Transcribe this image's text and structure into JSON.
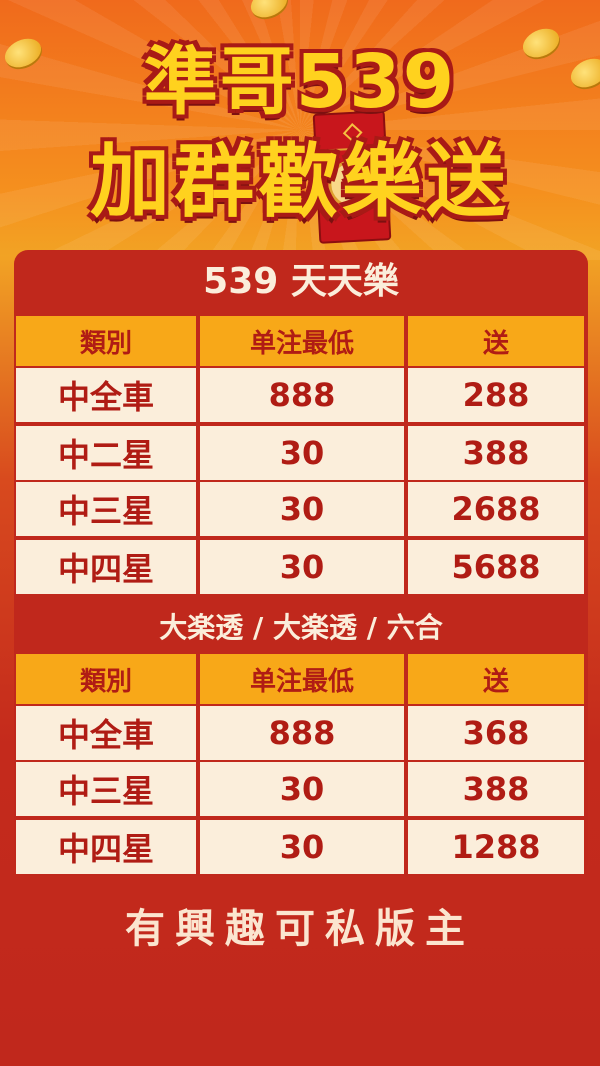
{
  "header": {
    "line1": "準哥539",
    "line2": "加群歡樂送"
  },
  "colors": {
    "background": "#c0281c",
    "title_yellow": "#ffd21e",
    "header_cell": "#f8a818",
    "body_cell": "#fbeedb",
    "text_red": "#b01c14"
  },
  "sections": [
    {
      "title": "539 天天樂",
      "columns": [
        "類別",
        "单注最低",
        "送"
      ],
      "rows": [
        [
          "中全車",
          "888",
          "288"
        ],
        [
          "中二星",
          "30",
          "388"
        ],
        [
          "中三星",
          "30",
          "2688"
        ],
        [
          "中四星",
          "30",
          "5688"
        ]
      ]
    },
    {
      "title": "大楽透 / 大楽透 /  六合",
      "columns": [
        "類別",
        "单注最低",
        "送"
      ],
      "rows": [
        [
          "中全車",
          "888",
          "368"
        ],
        [
          "中三星",
          "30",
          "388"
        ],
        [
          "中四星",
          "30",
          "1288"
        ]
      ]
    }
  ],
  "footer": "有興趣可私版主"
}
